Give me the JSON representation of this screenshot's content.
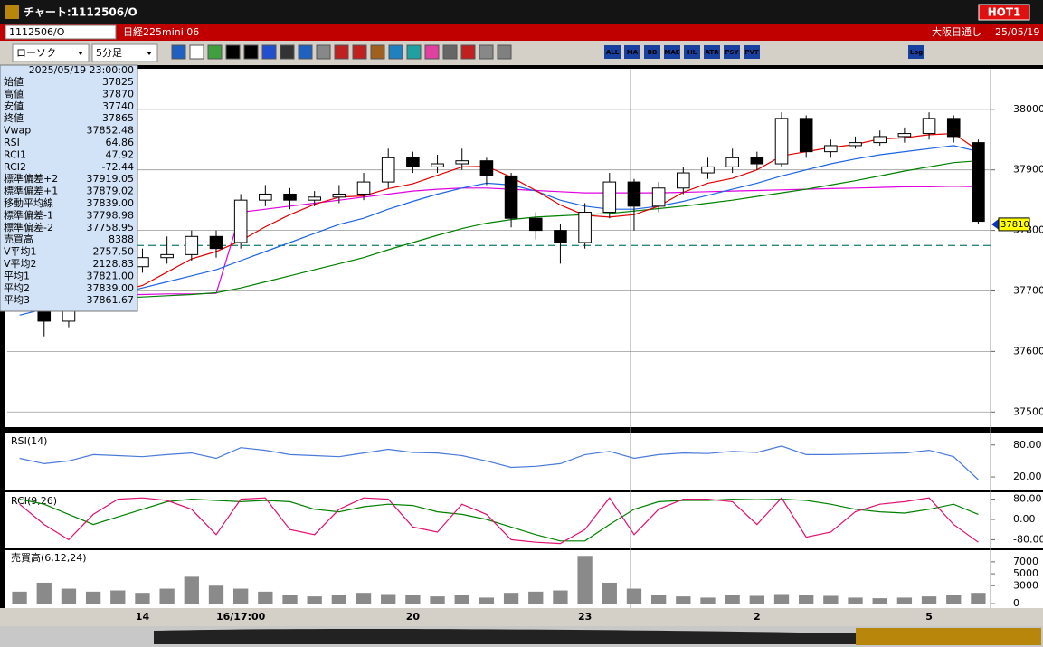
{
  "window": {
    "title": "チャート:1112506/O",
    "badge": "HOT1",
    "symbol": "1112506/O",
    "instrument": "日経225mini 06",
    "market": "大阪日通し",
    "date": "25/05/19"
  },
  "toolbar": {
    "chart_type": "ローソク",
    "interval": "5分足",
    "buttons": [
      "ALL",
      "MA",
      "BB",
      "MAE",
      "HL",
      "ATR",
      "PSY",
      "PVT",
      "Log"
    ]
  },
  "info_panel": {
    "timestamp": "2025/05/19  23:00:00",
    "rows": [
      [
        "始値",
        "37825",
        "#000000"
      ],
      [
        "高値",
        "37870",
        "#000000"
      ],
      [
        "安値",
        "37740",
        "#000000"
      ],
      [
        "終値",
        "37865",
        "#000000"
      ],
      [
        "Vwap",
        "37852.48",
        "#e000e0"
      ],
      [
        "RSI",
        "64.86",
        "#5a82d8"
      ],
      [
        "RCI1",
        "47.92",
        "#e01070"
      ],
      [
        "RCI2",
        "-72.44",
        "#008000"
      ],
      [
        "標準偏差+2",
        "37919.05",
        "#9a9a9a"
      ],
      [
        "標準偏差+1",
        "37879.02",
        "#9a9a9a"
      ],
      [
        "移動平均線",
        "37839.00",
        "#0000c0"
      ],
      [
        "標準偏差-1",
        "37798.98",
        "#9a9a9a"
      ],
      [
        "標準偏差-2",
        "37758.95",
        "#9a9a9a"
      ],
      [
        "売買高",
        "8388",
        "#000000"
      ],
      [
        "V平均1",
        "2757.50",
        "#e01070"
      ],
      [
        "V平均2",
        "2128.83",
        "#6a50d8"
      ],
      [
        "平均1",
        "37821.00",
        "#e00000"
      ],
      [
        "平均2",
        "37839.00",
        "#0050e0"
      ],
      [
        "平均3",
        "37861.67",
        "#008000"
      ]
    ]
  },
  "chart_data": [
    {
      "type": "candlestick",
      "ylim": [
        37478,
        38064
      ],
      "yticks": [
        37500,
        37600,
        37700,
        37800,
        37900,
        38000
      ],
      "grid": true,
      "up_color": "#ffffff",
      "down_color": "#000000",
      "reference_line": 37775,
      "last_price": 37810,
      "open": [
        37690,
        37700,
        37650,
        37680,
        37720,
        37740,
        37755,
        37760,
        37790,
        37780,
        37850,
        37860,
        37850,
        37855,
        37860,
        37880,
        37920,
        37905,
        37910,
        37915,
        37890,
        37820,
        37800,
        37780,
        37830,
        37880,
        37840,
        37870,
        37895,
        37905,
        37920,
        37910,
        37985,
        37930,
        37940,
        37945,
        37955,
        37960,
        37985,
        37945
      ],
      "high": [
        37715,
        37710,
        37695,
        37730,
        37750,
        37770,
        37790,
        37800,
        37800,
        37860,
        37875,
        37870,
        37865,
        37875,
        37895,
        37935,
        37930,
        37925,
        37935,
        37920,
        37895,
        37830,
        37810,
        37845,
        37895,
        37885,
        37880,
        37905,
        37920,
        37935,
        37930,
        37995,
        37990,
        37950,
        37955,
        37965,
        37970,
        37995,
        37990,
        37950
      ],
      "low": [
        37675,
        37625,
        37640,
        37670,
        37710,
        37730,
        37745,
        37750,
        37755,
        37770,
        37840,
        37835,
        37840,
        37845,
        37850,
        37870,
        37895,
        37895,
        37900,
        37875,
        37805,
        37785,
        37745,
        37770,
        37820,
        37800,
        37830,
        37860,
        37885,
        37895,
        37900,
        37905,
        37920,
        37920,
        37935,
        37940,
        37945,
        37950,
        37945,
        37810
      ],
      "close": [
        37700,
        37650,
        37680,
        37720,
        37740,
        37755,
        37760,
        37790,
        37770,
        37850,
        37860,
        37850,
        37855,
        37860,
        37880,
        37920,
        37905,
        37910,
        37915,
        37890,
        37820,
        37800,
        37780,
        37830,
        37880,
        37840,
        37870,
        37895,
        37905,
        37920,
        37910,
        37985,
        37930,
        37940,
        37945,
        37955,
        37960,
        37985,
        37955,
        37815
      ],
      "series": [
        {
          "color": "#e000e0",
          "values": [
            37690,
            37692,
            37692,
            37693,
            37694,
            37694,
            37695,
            37695,
            37696,
            37830,
            37835,
            37840,
            37845,
            37850,
            37855,
            37860,
            37865,
            37868,
            37870,
            37870,
            37868,
            37866,
            37864,
            37862,
            37862,
            37862,
            37862,
            37863,
            37864,
            37865,
            37866,
            37867,
            37868,
            37869,
            37870,
            37871,
            37872,
            37872,
            37873,
            37872
          ]
        },
        {
          "color": "#008000",
          "values": [
            37680,
            37682,
            37684,
            37686,
            37688,
            37690,
            37692,
            37694,
            37697,
            37705,
            37715,
            37725,
            37735,
            37745,
            37755,
            37768,
            37780,
            37792,
            37803,
            37812,
            37818,
            37822,
            37824,
            37826,
            37828,
            37832,
            37836,
            37840,
            37845,
            37850,
            37856,
            37862,
            37868,
            37875,
            37882,
            37890,
            37898,
            37905,
            37912,
            37915
          ]
        },
        {
          "color": "#1e64e0",
          "values": [
            37660,
            37670,
            37675,
            37685,
            37695,
            37705,
            37715,
            37725,
            37735,
            37750,
            37765,
            37780,
            37795,
            37810,
            37820,
            37835,
            37848,
            37860,
            37870,
            37878,
            37875,
            37865,
            37850,
            37840,
            37835,
            37835,
            37840,
            37848,
            37858,
            37868,
            37878,
            37890,
            37900,
            37910,
            37918,
            37925,
            37930,
            37935,
            37940,
            37930
          ]
        },
        {
          "color": "#e00000",
          "values": [
            null,
            null,
            null,
            null,
            37698,
            37709,
            37731,
            37753,
            37765,
            37783,
            37806,
            37826,
            37843,
            37855,
            37857,
            37869,
            37877,
            37891,
            37905,
            37906,
            37888,
            37866,
            37842,
            37825,
            37822,
            37826,
            37840,
            37863,
            37878,
            37886,
            37900,
            37923,
            37930,
            37937,
            37942,
            37951,
            37953,
            37958,
            37960,
            37932
          ]
        }
      ]
    },
    {
      "type": "line",
      "title": "RSI(14)",
      "ylim": [
        -2,
        100
      ],
      "yticks": [
        {
          "value": 80,
          "label": "80.00"
        },
        {
          "value": 20,
          "label": "20.00"
        }
      ],
      "series": [
        {
          "color": "#4a7ad8",
          "values": [
            55,
            45,
            50,
            62,
            60,
            58,
            62,
            65,
            55,
            75,
            70,
            62,
            60,
            58,
            65,
            72,
            66,
            65,
            60,
            50,
            38,
            40,
            45,
            62,
            68,
            55,
            62,
            65,
            64,
            68,
            66,
            78,
            62,
            62,
            63,
            64,
            65,
            70,
            58,
            15
          ]
        }
      ]
    },
    {
      "type": "line",
      "title": "RCI(9,26)",
      "ylim": [
        -100,
        100
      ],
      "yticks": [
        {
          "value": 80,
          "label": "80.00"
        },
        {
          "value": 0,
          "label": "0.00"
        },
        {
          "value": -80,
          "label": "-80.00"
        }
      ],
      "series": [
        {
          "color": "#008000",
          "values": [
            80,
            60,
            20,
            -20,
            10,
            40,
            70,
            80,
            75,
            70,
            75,
            70,
            40,
            30,
            50,
            60,
            55,
            30,
            20,
            0,
            -30,
            -60,
            -85,
            -85,
            -20,
            40,
            70,
            75,
            75,
            80,
            78,
            80,
            75,
            60,
            40,
            30,
            25,
            40,
            60,
            20
          ]
        },
        {
          "color": "#e01070",
          "values": [
            60,
            -20,
            -80,
            20,
            80,
            85,
            75,
            40,
            -60,
            80,
            85,
            -40,
            -60,
            40,
            85,
            80,
            -30,
            -50,
            60,
            20,
            -80,
            -90,
            -95,
            -40,
            85,
            -60,
            40,
            80,
            80,
            70,
            -20,
            85,
            -70,
            -50,
            30,
            60,
            70,
            85,
            -20,
            -90
          ]
        }
      ]
    },
    {
      "type": "bar",
      "title": "売買高(6,12,24)",
      "ylim": [
        -600,
        8800
      ],
      "yticks": [
        7000,
        5000,
        3000,
        0
      ],
      "color": "#8a8a8a",
      "categories": [
        null,
        null,
        null,
        null,
        null,
        "14",
        null,
        null,
        null,
        "16/17:00",
        null,
        null,
        null,
        null,
        null,
        null,
        "20",
        null,
        null,
        null,
        null,
        null,
        null,
        "23",
        null,
        null,
        null,
        null,
        null,
        null,
        "2",
        null,
        null,
        null,
        null,
        null,
        null,
        "5",
        null,
        null
      ],
      "values": [
        2000,
        3500,
        2500,
        2000,
        2200,
        1800,
        2500,
        4500,
        3000,
        2500,
        2000,
        1500,
        1200,
        1500,
        1800,
        1600,
        1400,
        1200,
        1500,
        1000,
        1800,
        2000,
        2200,
        8000,
        3500,
        2500,
        1500,
        1200,
        1000,
        1400,
        1300,
        1600,
        1500,
        1300,
        1000,
        900,
        1000,
        1200,
        1400,
        1800
      ]
    }
  ]
}
